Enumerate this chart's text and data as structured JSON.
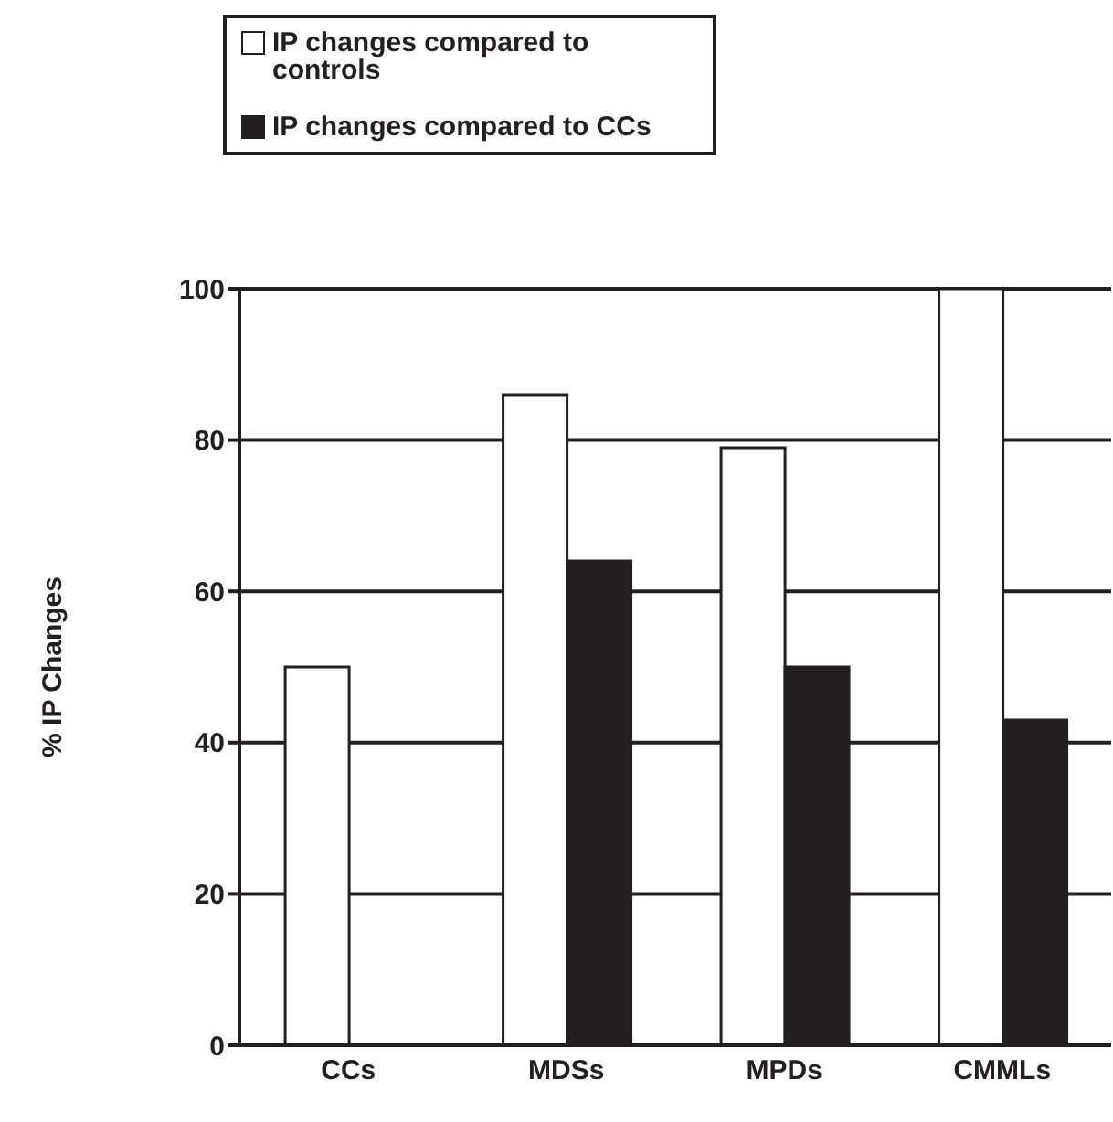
{
  "chart_data": {
    "type": "bar",
    "ylabel": "% IP Changes",
    "categories": [
      "CCs",
      "MDSs",
      "MPDs",
      "CMMLs"
    ],
    "series": [
      {
        "name": "IP changes compared to controls",
        "color": "#ffffff",
        "values": [
          50,
          86,
          79,
          100
        ]
      },
      {
        "name": "IP changes compared to CCs",
        "color": "#231f20",
        "values": [
          null,
          64,
          50,
          43
        ]
      }
    ],
    "ylim": [
      0,
      100
    ],
    "yticks": [
      0,
      20,
      40,
      60,
      80,
      100
    ],
    "grid": "y",
    "legend": "top left"
  }
}
